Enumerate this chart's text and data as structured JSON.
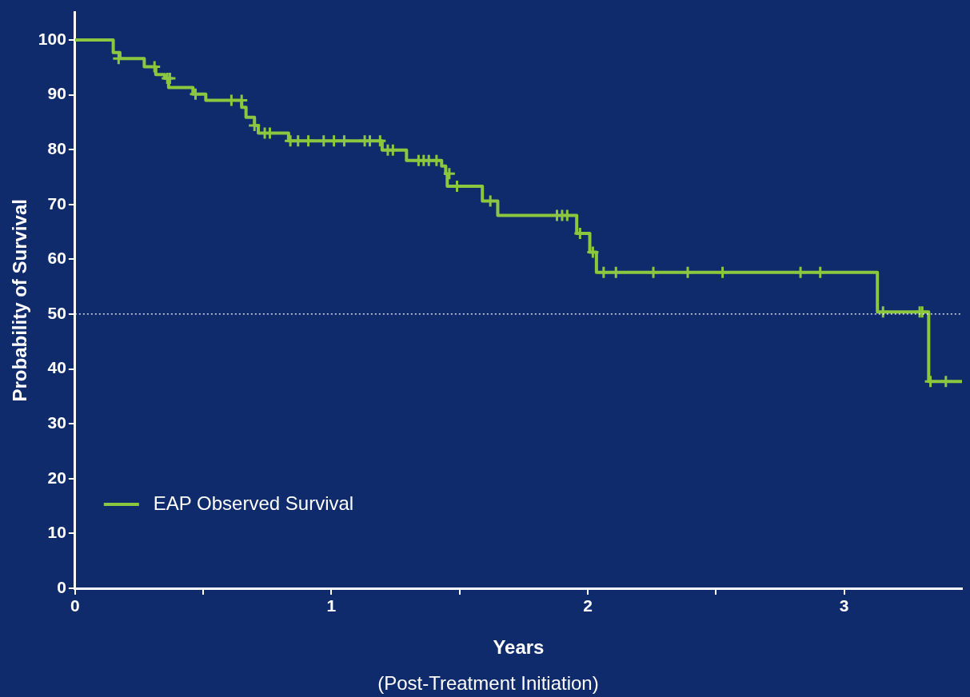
{
  "chart_data": {
    "type": "step",
    "xlabel": "Years",
    "ylabel": "Probability of Survival",
    "annotations": [
      "(Post-Treatment Initiation)"
    ],
    "xlim": [
      0,
      3.46
    ],
    "ylim": [
      0,
      105
    ],
    "xticks": [
      0,
      {
        "value": 0.5,
        "label": null
      },
      1,
      {
        "value": 1.5,
        "label": null
      },
      2,
      {
        "value": 2.5,
        "label": null
      },
      3
    ],
    "yticks": [
      0,
      10,
      20,
      30,
      40,
      50,
      60,
      70,
      80,
      90,
      100
    ],
    "grid": false,
    "legend": "bottom left",
    "ref_lines": [
      {
        "axis": "y",
        "value": 50,
        "color": "#ffffff",
        "line_style": "dotted"
      }
    ],
    "series": [
      {
        "name": "EAP Observed Survival",
        "color": "#8dc63f",
        "marker": "none",
        "line_style": "solid",
        "x": [
          0,
          0.149,
          0.175,
          0.27,
          0.315,
          0.35,
          0.365,
          0.46,
          0.51,
          0.65,
          0.667,
          0.7,
          0.715,
          0.833,
          1.198,
          1.293,
          1.43,
          1.446,
          1.452,
          1.589,
          1.649,
          1.957,
          2.008,
          2.034,
          3.13,
          3.33,
          3.46
        ],
        "values": [
          100,
          97.7,
          96.6,
          95.1,
          93.7,
          93.0,
          91.3,
          90.1,
          89.0,
          87.7,
          85.9,
          84.4,
          83.0,
          81.6,
          79.9,
          78.0,
          77.0,
          75.6,
          73.3,
          70.6,
          68.0,
          64.7,
          61.3,
          57.6,
          50.4,
          37.7,
          37.7
        ]
      },
      {
        "type": "scatter",
        "color": "#8dc63f",
        "marker": "cross",
        "x": [
          0.17,
          0.31,
          0.36,
          0.37,
          0.47,
          0.61,
          0.65,
          0.7,
          0.74,
          0.76,
          0.84,
          0.87,
          0.91,
          0.97,
          1.01,
          1.05,
          1.13,
          1.15,
          1.19,
          1.22,
          1.24,
          1.34,
          1.36,
          1.38,
          1.41,
          1.46,
          1.49,
          1.62,
          1.88,
          1.9,
          1.92,
          1.97,
          2.02,
          2.062,
          2.11,
          2.256,
          2.39,
          2.526,
          2.83,
          2.907,
          3.152,
          3.295,
          3.305,
          3.337,
          3.397
        ],
        "values": [
          96.6,
          95.1,
          93.0,
          93.0,
          90.1,
          89.0,
          89.0,
          84.4,
          83.0,
          83.0,
          81.6,
          81.6,
          81.6,
          81.6,
          81.6,
          81.6,
          81.6,
          81.6,
          81.6,
          79.9,
          79.9,
          78.0,
          78.0,
          78.0,
          78.0,
          75.6,
          73.3,
          70.6,
          68.0,
          68.0,
          68.0,
          64.7,
          61.3,
          57.6,
          57.6,
          57.6,
          57.6,
          57.6,
          57.6,
          57.6,
          50.4,
          50.4,
          50.4,
          37.7,
          37.7
        ]
      }
    ]
  }
}
